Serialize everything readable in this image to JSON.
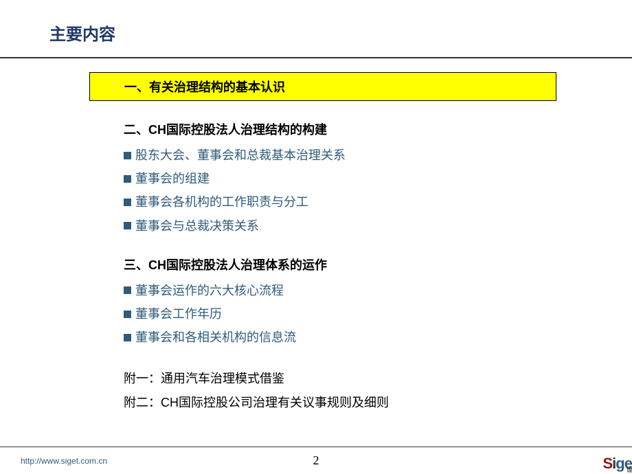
{
  "title": "主要内容",
  "highlight": "一、有关治理结构的基本认识",
  "section2": {
    "heading": "二、CH国际控股法人治理结构的构建",
    "items": [
      "股东大会、董事会和总裁基本治理关系",
      "董事会的组建",
      "董事会各机构的工作职责与分工",
      "董事会与总裁决策关系"
    ]
  },
  "section3": {
    "heading": "三、CH国际控股法人治理体系的运作",
    "items": [
      "董事会运作的六大核心流程",
      "董事会工作年历",
      "董事会和各相关机构的信息流"
    ]
  },
  "appendix1": "附一：通用汽车治理模式借鉴",
  "appendix2": "附二：CH国际控股公司治理有关议事规则及细则",
  "footer_url": "http://www.siget.com.cn",
  "page_number": "2",
  "logo_sub": "世",
  "colors": {
    "title_color": "#1f3864",
    "highlight_bg": "#ffff00",
    "link_color": "#2f5c7c",
    "text_color": "#000000"
  }
}
